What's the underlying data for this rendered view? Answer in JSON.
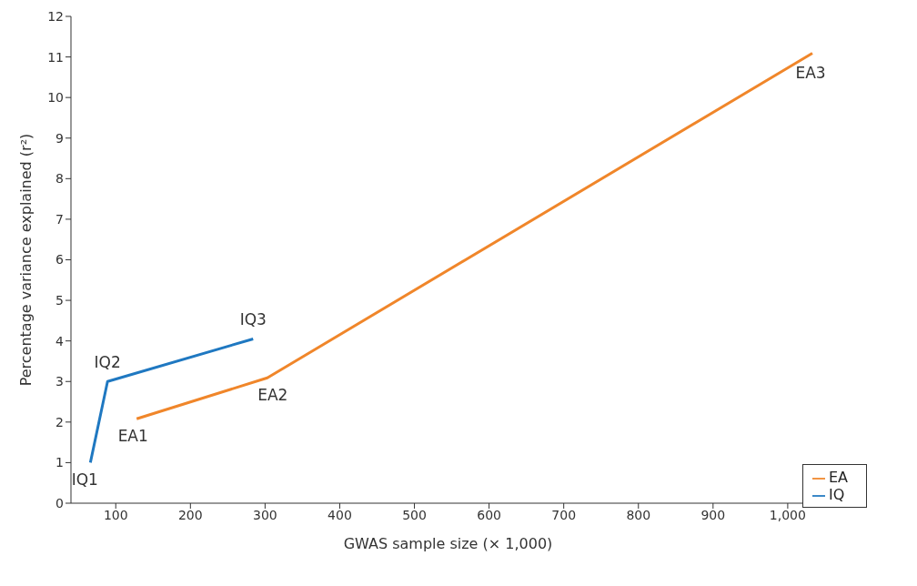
{
  "chart_data": {
    "type": "line",
    "xlabel": "GWAS sample size (× 1,000)",
    "ylabel": "Percentage variance explained (r²)",
    "series": [
      {
        "name": "IQ",
        "color": "#1f78c1",
        "x": [
          66,
          89,
          284
        ],
        "values": [
          1.0,
          3.0,
          4.05
        ]
      },
      {
        "name": "EA",
        "color": "#f0862a",
        "x": [
          128,
          303,
          1033
        ],
        "values": [
          2.08,
          3.09,
          11.09
        ]
      }
    ],
    "xlim": [
      40,
      1050
    ],
    "xticks": [
      100,
      200,
      300,
      400,
      500,
      600,
      700,
      800,
      900,
      {
        "value": 1000,
        "label": "1,000"
      }
    ],
    "ylim": [
      0,
      12
    ],
    "yticks": [
      0,
      1,
      2,
      3,
      4,
      5,
      6,
      7,
      8,
      9,
      10,
      11,
      12
    ],
    "annotations": [
      {
        "text": "IQ1",
        "x": 66,
        "y": 1.0
      },
      {
        "text": "IQ2",
        "x": 89,
        "y": 3.0
      },
      {
        "text": "IQ3",
        "x": 284,
        "y": 4.05
      },
      {
        "text": "EA1",
        "x": 128,
        "y": 2.08
      },
      {
        "text": "EA2",
        "x": 303,
        "y": 3.09
      },
      {
        "text": "EA3",
        "x": 1033,
        "y": 11.09
      }
    ],
    "legend": "bottom right",
    "marker": "none",
    "line_style": "solid",
    "grid": false
  }
}
